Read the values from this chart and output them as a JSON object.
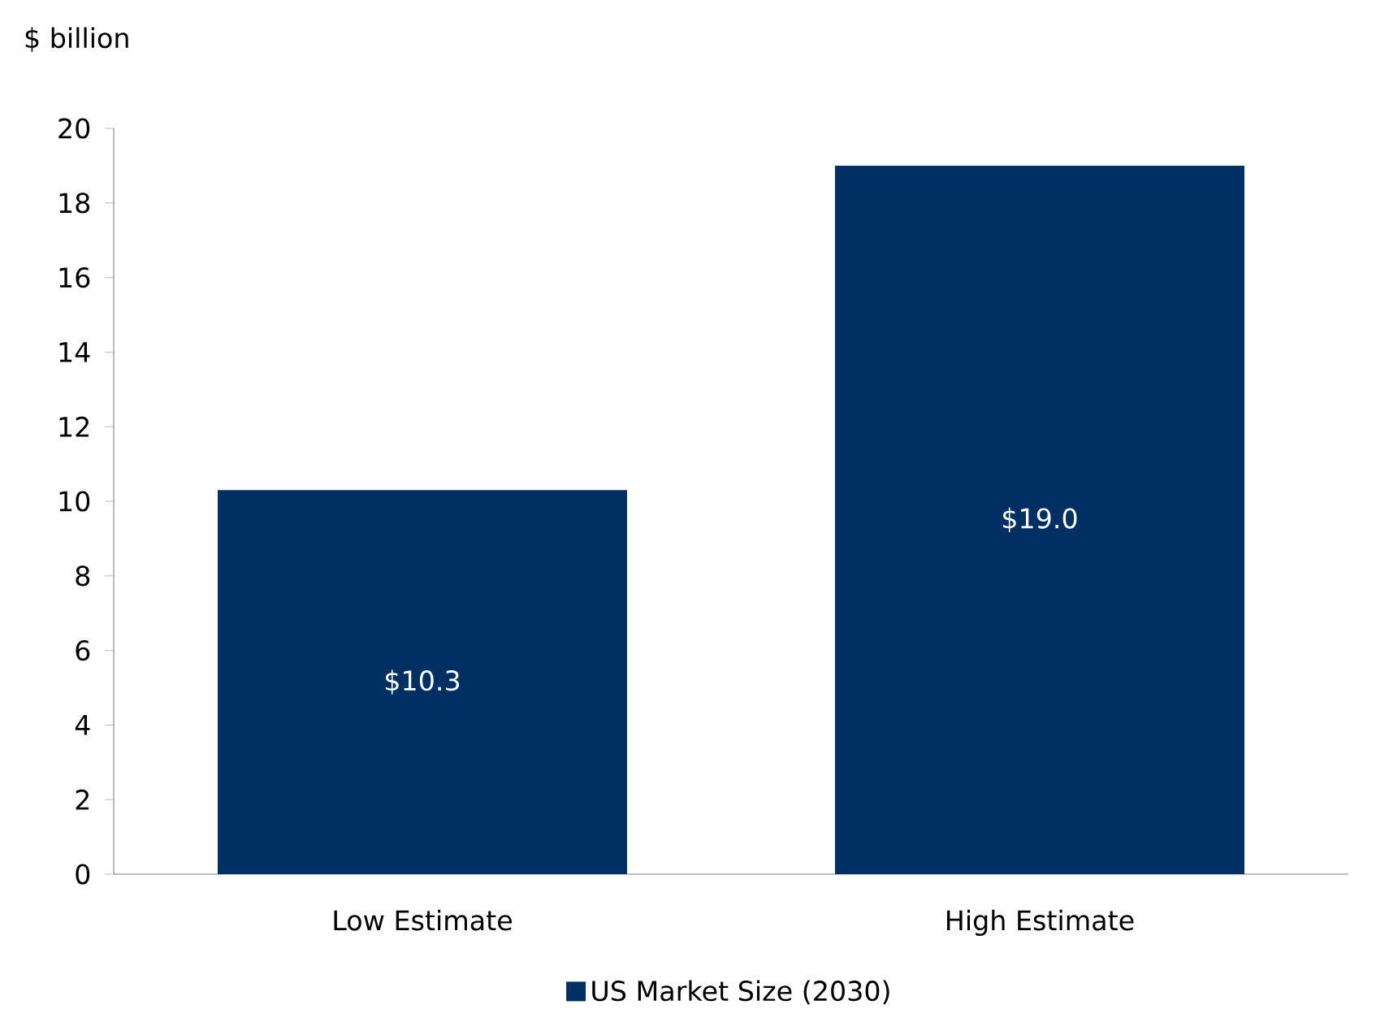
{
  "chart_data": {
    "type": "bar",
    "ylabel": "$ billion",
    "categories": [
      "Low Estimate",
      "High Estimate"
    ],
    "series": [
      {
        "name": "US Market Size (2030)",
        "color": "#003063",
        "values": [
          10.3,
          19.0
        ],
        "value_labels": [
          "$10.3",
          "$19.0"
        ]
      }
    ],
    "ylim": [
      0,
      20
    ],
    "yticks": [
      0,
      2,
      4,
      6,
      8,
      10,
      12,
      14,
      16,
      18,
      20
    ],
    "legend": "bottom",
    "grid": false
  }
}
